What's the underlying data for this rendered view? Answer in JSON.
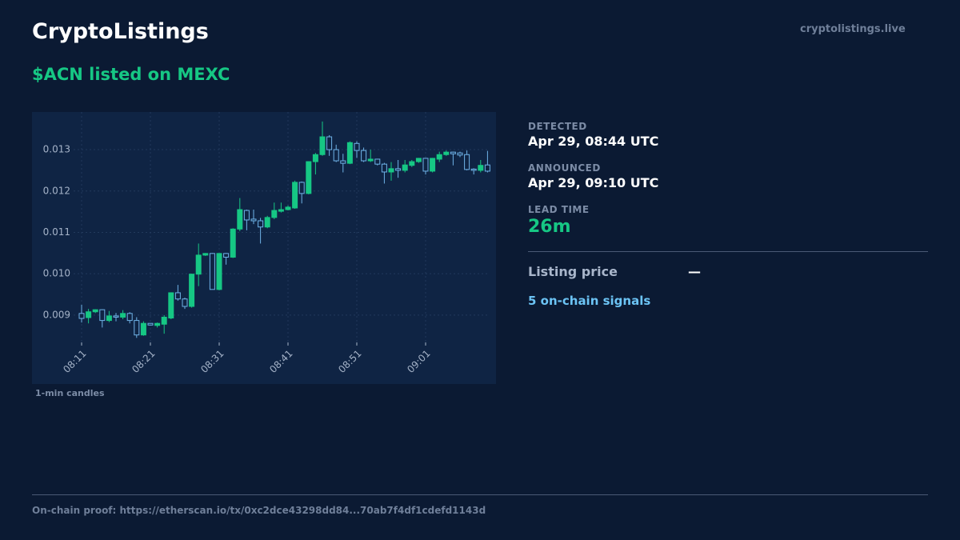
{
  "header": {
    "title": "CryptoListings",
    "site": "cryptolistings.live",
    "headline": "$ACN listed on MEXC"
  },
  "chart_data": {
    "type": "candlestick",
    "caption": "1-min candles",
    "categories": [
      "08:11",
      null,
      null,
      null,
      null,
      null,
      null,
      null,
      null,
      null,
      "08:21",
      null,
      null,
      null,
      null,
      null,
      null,
      null,
      null,
      null,
      "08:31",
      null,
      null,
      null,
      null,
      null,
      null,
      null,
      null,
      null,
      "08:41",
      null,
      null,
      null,
      null,
      null,
      null,
      null,
      null,
      null,
      "08:51",
      null,
      null,
      null,
      null,
      null,
      null,
      null,
      null,
      null,
      "09:01",
      null,
      null,
      null,
      null,
      null,
      null,
      null,
      null,
      null
    ],
    "open": [
      0.00904,
      0.00894,
      0.00908,
      0.00913,
      0.00887,
      0.00898,
      0.00895,
      0.00904,
      0.00887,
      0.00852,
      0.0088,
      0.00875,
      0.00878,
      0.00893,
      0.00954,
      0.00939,
      0.00921,
      0.00999,
      0.01045,
      0.01049,
      0.00962,
      0.01049,
      0.0104,
      0.01108,
      0.01153,
      0.01132,
      0.01128,
      0.01113,
      0.01136,
      0.01151,
      0.01155,
      0.01159,
      0.01221,
      0.01194,
      0.01271,
      0.01288,
      0.01331,
      0.013,
      0.01273,
      0.01267,
      0.01315,
      0.01298,
      0.01273,
      0.01277,
      0.01265,
      0.01246,
      0.01254,
      0.0125,
      0.01262,
      0.01271,
      0.01279,
      0.01248,
      0.01277,
      0.01288,
      0.01294,
      0.01292,
      0.01288,
      0.01253,
      0.0125,
      0.01263
    ],
    "high": [
      0.00925,
      0.00915,
      0.00914,
      0.00914,
      0.0091,
      0.00905,
      0.00912,
      0.00907,
      0.00895,
      0.00885,
      0.0088,
      0.00882,
      0.009,
      0.00955,
      0.00973,
      0.00942,
      0.01,
      0.01073,
      0.0105,
      0.0105,
      0.0105,
      0.0105,
      0.0111,
      0.01183,
      0.01155,
      0.01155,
      0.01135,
      0.0114,
      0.01172,
      0.01172,
      0.01165,
      0.01225,
      0.01223,
      0.01272,
      0.01292,
      0.01368,
      0.01335,
      0.01312,
      0.0129,
      0.0132,
      0.0132,
      0.01305,
      0.013,
      0.01278,
      0.01268,
      0.0127,
      0.01275,
      0.01275,
      0.01275,
      0.0128,
      0.0128,
      0.0128,
      0.01295,
      0.01298,
      0.01295,
      0.01295,
      0.01298,
      0.01255,
      0.01275,
      0.01297
    ],
    "low": [
      0.00882,
      0.0088,
      0.00905,
      0.0087,
      0.00883,
      0.00885,
      0.0089,
      0.0088,
      0.00845,
      0.0085,
      0.00875,
      0.0087,
      0.00855,
      0.0089,
      0.00935,
      0.00915,
      0.00918,
      0.0097,
      0.01043,
      0.00962,
      0.0096,
      0.01022,
      0.01038,
      0.01103,
      0.01105,
      0.0112,
      0.01073,
      0.0111,
      0.01132,
      0.01148,
      0.01153,
      0.01157,
      0.0117,
      0.01192,
      0.0124,
      0.01285,
      0.01285,
      0.0127,
      0.01245,
      0.01265,
      0.0128,
      0.0127,
      0.0127,
      0.01262,
      0.01218,
      0.01225,
      0.01232,
      0.01245,
      0.01258,
      0.01268,
      0.0124,
      0.01245,
      0.0127,
      0.01285,
      0.01262,
      0.01282,
      0.0125,
      0.0124,
      0.01245,
      0.01245
    ],
    "close": [
      0.00892,
      0.00908,
      0.00913,
      0.00887,
      0.00898,
      0.00895,
      0.00904,
      0.00887,
      0.00852,
      0.0088,
      0.00876,
      0.0088,
      0.00895,
      0.00954,
      0.00939,
      0.00921,
      0.00999,
      0.01045,
      0.01049,
      0.00962,
      0.01049,
      0.0104,
      0.01108,
      0.01155,
      0.0113,
      0.01128,
      0.01113,
      0.01136,
      0.01153,
      0.01155,
      0.01161,
      0.01221,
      0.01194,
      0.01271,
      0.01288,
      0.01331,
      0.013,
      0.01273,
      0.01267,
      0.01317,
      0.01298,
      0.01273,
      0.01277,
      0.01265,
      0.01246,
      0.01254,
      0.0125,
      0.01263,
      0.01271,
      0.01279,
      0.01248,
      0.01279,
      0.01288,
      0.01294,
      0.0129,
      0.01287,
      0.01252,
      0.0125,
      0.01262,
      0.01248
    ],
    "up_color": "#16c784",
    "down_color": "#6fb3e8",
    "grid": true,
    "ylim": [
      0.00834,
      0.01391
    ],
    "yticks": [
      0.009,
      {
        "value": 0.01,
        "label": "0.010"
      },
      0.011,
      0.012,
      0.013
    ]
  },
  "details": {
    "detected_label": "DETECTED",
    "detected": "Apr 29, 08:44 UTC",
    "announced_label": "ANNOUNCED",
    "announced": "Apr 29, 09:10 UTC",
    "lead_label": "LEAD TIME",
    "lead": "26m",
    "price_label": "Listing price",
    "price": "—",
    "signals": "5 on-chain signals"
  },
  "footer": {
    "proof": "On-chain proof: https://etherscan.io/tx/0xc2dce43298dd84...70ab7f4df1cdefd1143d"
  }
}
